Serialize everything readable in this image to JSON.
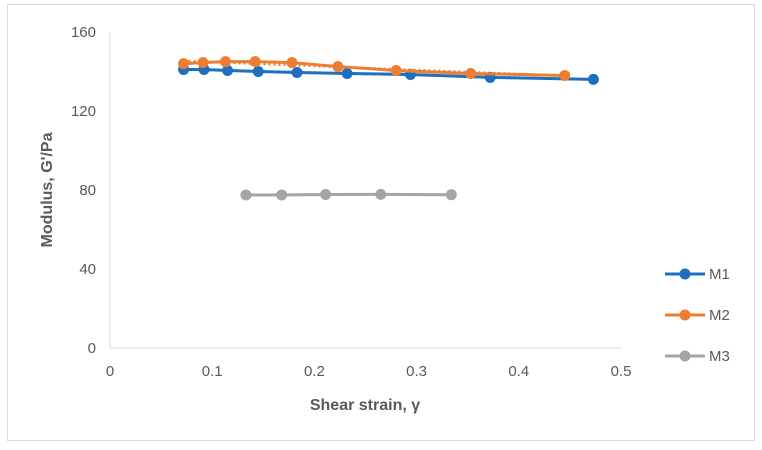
{
  "chart_data": {
    "type": "line",
    "title": "",
    "xlabel": "Shear strain, γ",
    "ylabel": "Modulus, G'/Pa",
    "xlim": [
      0,
      0.5
    ],
    "ylim": [
      0,
      160
    ],
    "x_ticks": [
      "0",
      "0.1",
      "0.2",
      "0.3",
      "0.4",
      "0.5"
    ],
    "y_ticks": [
      "0",
      "40",
      "80",
      "120",
      "160"
    ],
    "grid": false,
    "legend_position": "right",
    "series": [
      {
        "name": "M1",
        "color": "#1f6fbf",
        "x": [
          0.072,
          0.092,
          0.115,
          0.145,
          0.183,
          0.232,
          0.294,
          0.372,
          0.473
        ],
        "y": [
          141,
          141,
          140.5,
          140,
          139.5,
          139,
          138.5,
          137,
          136
        ]
      },
      {
        "name": "M2",
        "color": "#ed7d31",
        "x": [
          0.072,
          0.091,
          0.113,
          0.142,
          0.178,
          0.223,
          0.28,
          0.353,
          0.445
        ],
        "y": [
          144,
          144.5,
          145,
          145,
          144.5,
          142.5,
          140.5,
          139,
          138
        ]
      },
      {
        "name": "M3",
        "color": "#a5a5a5",
        "x": [
          0.133,
          0.168,
          0.211,
          0.265,
          0.334
        ],
        "y": [
          77.5,
          77.5,
          77.7,
          77.8,
          77.6
        ]
      }
    ]
  }
}
